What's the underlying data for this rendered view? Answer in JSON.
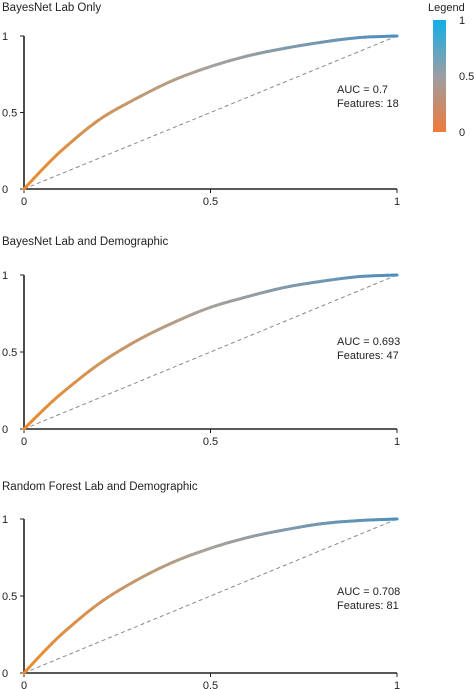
{
  "colors": {
    "curve_low": "#ee8a2a",
    "curve_mid": "#a8a19a",
    "curve_high": "#4f8fc0",
    "legend_top": "#12aee8",
    "legend_mid": "#9c9ea4",
    "legend_bottom": "#ef7a3a",
    "axis": "#222222",
    "diagonal": "#888888"
  },
  "legend": {
    "title": "Legend",
    "ticks": [
      {
        "label": "1",
        "value": 1
      },
      {
        "label": "0.5",
        "value": 0.5
      },
      {
        "label": "0",
        "value": 0
      }
    ]
  },
  "chart_data": [
    {
      "type": "line",
      "title": "BayesNet Lab Only",
      "xlim": [
        0,
        1
      ],
      "ylim": [
        0,
        1
      ],
      "x_ticks": [
        "0",
        "0.5",
        "1"
      ],
      "y_ticks": [
        "0",
        "0.5",
        "1"
      ],
      "grid": false,
      "series": [
        {
          "x": [
            0,
            0.05,
            0.1,
            0.2,
            0.3,
            0.4,
            0.5,
            0.6,
            0.7,
            0.8,
            0.9,
            1.0
          ],
          "y": [
            0,
            0.13,
            0.25,
            0.45,
            0.59,
            0.71,
            0.8,
            0.87,
            0.92,
            0.96,
            0.99,
            1.0
          ]
        },
        {
          "x": [
            0,
            1
          ],
          "y": [
            0,
            1
          ],
          "style": "dashed"
        }
      ],
      "annotations": [
        "AUC = 0.7",
        "Features: 18"
      ]
    },
    {
      "type": "line",
      "title": "BayesNet Lab and Demographic",
      "xlim": [
        0,
        1
      ],
      "ylim": [
        0,
        1
      ],
      "x_ticks": [
        "0",
        "0.5",
        "1"
      ],
      "y_ticks": [
        "0",
        "0.5",
        "1"
      ],
      "grid": false,
      "series": [
        {
          "x": [
            0,
            0.05,
            0.1,
            0.2,
            0.3,
            0.4,
            0.5,
            0.6,
            0.7,
            0.8,
            0.9,
            1.0
          ],
          "y": [
            0,
            0.12,
            0.23,
            0.42,
            0.57,
            0.69,
            0.79,
            0.86,
            0.92,
            0.96,
            0.99,
            1.0
          ]
        },
        {
          "x": [
            0,
            1
          ],
          "y": [
            0,
            1
          ],
          "style": "dashed"
        }
      ],
      "annotations": [
        "AUC = 0.693",
        "Features: 47"
      ]
    },
    {
      "type": "line",
      "title": "Random Forest Lab and Demographic",
      "xlim": [
        0,
        1
      ],
      "ylim": [
        0,
        1
      ],
      "x_ticks": [
        "0",
        "0.5",
        "1"
      ],
      "y_ticks": [
        "0",
        "0.5",
        "1"
      ],
      "grid": false,
      "series": [
        {
          "x": [
            0,
            0.05,
            0.1,
            0.2,
            0.3,
            0.4,
            0.5,
            0.6,
            0.7,
            0.8,
            0.9,
            1.0
          ],
          "y": [
            0,
            0.13,
            0.25,
            0.45,
            0.6,
            0.72,
            0.81,
            0.88,
            0.93,
            0.97,
            0.99,
            1.0
          ]
        },
        {
          "x": [
            0,
            1
          ],
          "y": [
            0,
            1
          ],
          "style": "dashed"
        }
      ],
      "annotations": [
        "AUC = 0.708",
        "Features: 81"
      ]
    }
  ]
}
